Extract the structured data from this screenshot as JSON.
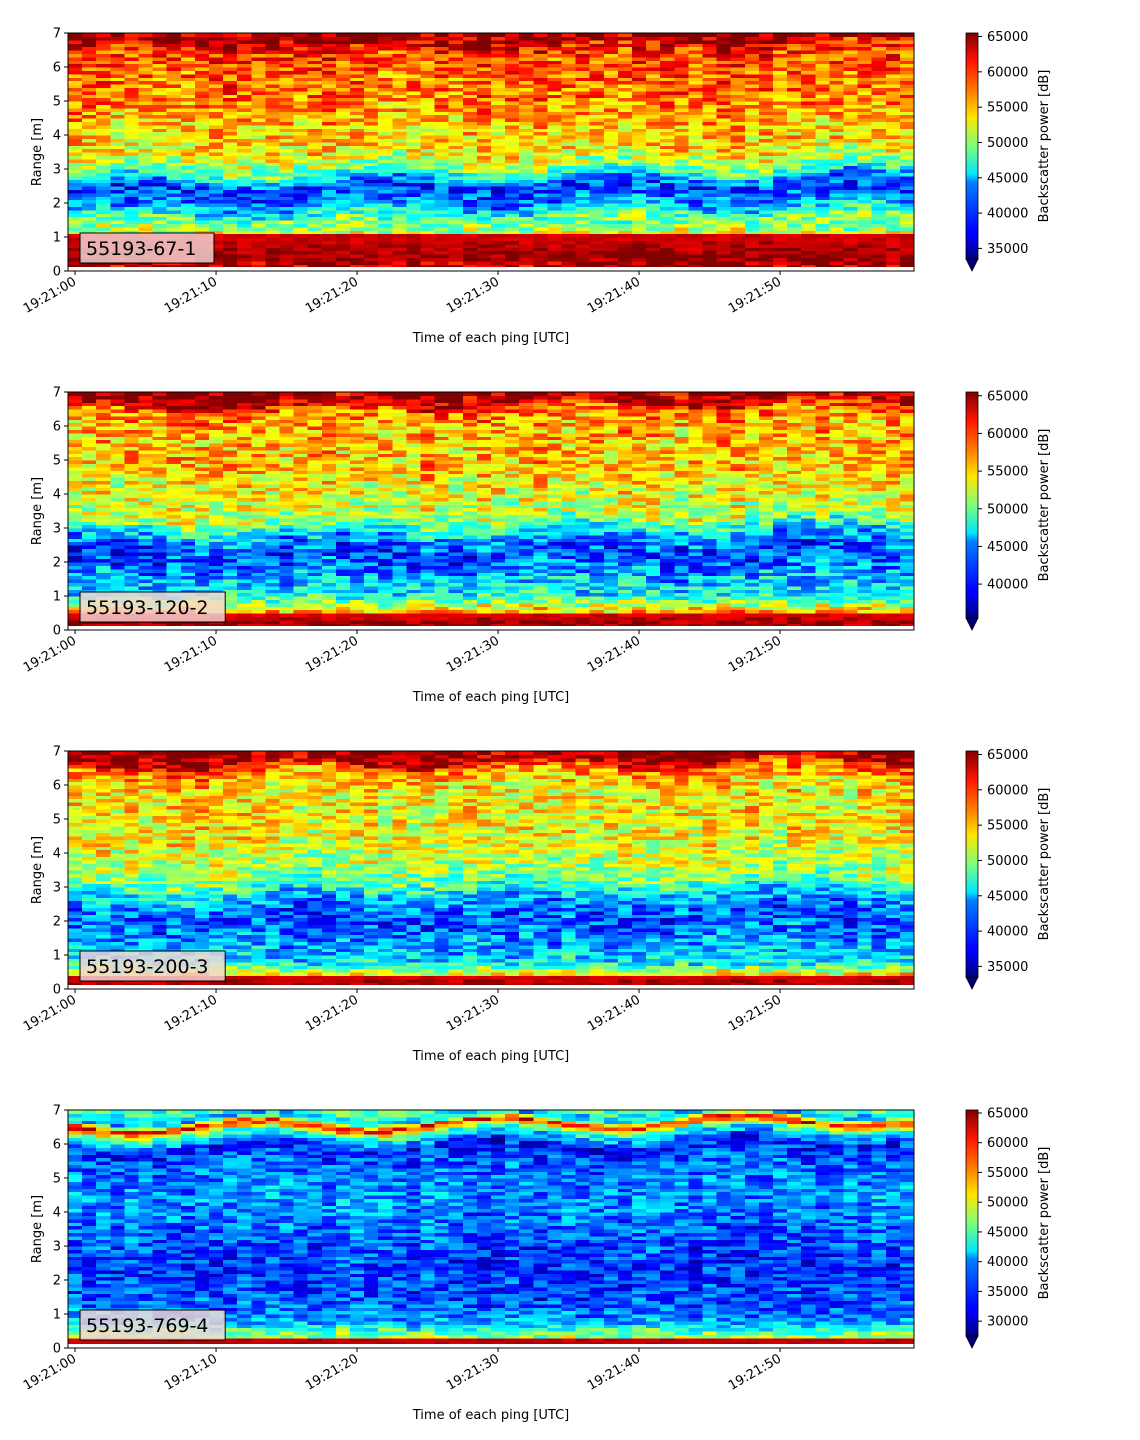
{
  "chart_data": [
    {
      "type": "heatmap",
      "label": "55193-67-1",
      "xlabel": "Time of each ping [UTC]",
      "ylabel": "Range [m]",
      "x_ticks": [
        "19:21:00",
        "19:21:10",
        "19:21:20",
        "19:21:30",
        "19:21:40",
        "19:21:50"
      ],
      "xlim": [
        "19:20:59.5",
        "19:21:59.5"
      ],
      "y_ticks": [
        0,
        1,
        2,
        3,
        4,
        5,
        6,
        7
      ],
      "ylim": [
        0,
        7
      ],
      "colorbar_label": "Backscatter power [dB]",
      "colorbar_ticks": [
        35000,
        40000,
        45000,
        50000,
        55000,
        60000,
        65000
      ],
      "clim": [
        33500,
        65500
      ],
      "colormap": "jet",
      "profile": [
        [
          0,
          63500
        ],
        [
          0.3,
          65000
        ],
        [
          0.8,
          62000
        ],
        [
          1.15,
          52000
        ],
        [
          1.6,
          48000
        ],
        [
          2.0,
          42000
        ],
        [
          2.5,
          39000
        ],
        [
          3.0,
          49000
        ],
        [
          3.5,
          54000
        ],
        [
          4.2,
          55000
        ],
        [
          5.0,
          57500
        ],
        [
          6.0,
          58500
        ],
        [
          6.55,
          60000
        ],
        [
          6.75,
          64500
        ],
        [
          7.0,
          64000
        ]
      ],
      "bottom_edge": [
        0.25,
        1.1
      ],
      "layer": [
        2.3,
        2.95
      ]
    },
    {
      "type": "heatmap",
      "label": "55193-120-2",
      "xlabel": "Time of each ping [UTC]",
      "ylabel": "Range [m]",
      "x_ticks": [
        "19:21:00",
        "19:21:10",
        "19:21:20",
        "19:21:30",
        "19:21:40",
        "19:21:50"
      ],
      "xlim": [
        "19:20:59.5",
        "19:21:59.5"
      ],
      "y_ticks": [
        0,
        1,
        2,
        3,
        4,
        5,
        6,
        7
      ],
      "ylim": [
        0,
        7
      ],
      "colorbar_label": "Backscatter power [dB]",
      "colorbar_ticks": [
        40000,
        45000,
        50000,
        55000,
        60000,
        65000
      ],
      "clim": [
        35500,
        65500
      ],
      "colormap": "jet",
      "profile": [
        [
          0,
          64500
        ],
        [
          0.25,
          65000
        ],
        [
          0.55,
          56000
        ],
        [
          1.0,
          47000
        ],
        [
          1.6,
          44000
        ],
        [
          2.2,
          41000
        ],
        [
          2.8,
          44000
        ],
        [
          3.3,
          52000
        ],
        [
          4.2,
          54000
        ],
        [
          5.0,
          56000
        ],
        [
          6.0,
          56000
        ],
        [
          6.5,
          59000
        ],
        [
          6.75,
          64500
        ],
        [
          7.0,
          64500
        ]
      ],
      "bottom_edge": [
        0.1,
        0.5
      ],
      "layer": [
        2.6,
        3.7
      ]
    },
    {
      "type": "heatmap",
      "label": "55193-200-3",
      "xlabel": "Time of each ping [UTC]",
      "ylabel": "Range [m]",
      "x_ticks": [
        "19:21:00",
        "19:21:10",
        "19:21:20",
        "19:21:30",
        "19:21:40",
        "19:21:50"
      ],
      "xlim": [
        "19:20:59.5",
        "19:21:59.5"
      ],
      "y_ticks": [
        0,
        1,
        2,
        3,
        4,
        5,
        6,
        7
      ],
      "ylim": [
        0,
        7
      ],
      "colorbar_label": "Backscatter power [dB]",
      "colorbar_ticks": [
        35000,
        40000,
        45000,
        50000,
        55000,
        60000,
        65000
      ],
      "clim": [
        33500,
        65500
      ],
      "colormap": "jet",
      "profile": [
        [
          0,
          64500
        ],
        [
          0.2,
          64500
        ],
        [
          0.4,
          55000
        ],
        [
          0.8,
          45000
        ],
        [
          1.5,
          42000
        ],
        [
          2.2,
          40000
        ],
        [
          2.8,
          44000
        ],
        [
          3.3,
          50000
        ],
        [
          4.2,
          53000
        ],
        [
          5.0,
          54000
        ],
        [
          6.0,
          54000
        ],
        [
          6.5,
          58000
        ],
        [
          6.75,
          64500
        ],
        [
          7.0,
          64500
        ]
      ],
      "bottom_edge": [
        0.1,
        0.4
      ],
      "layer": [
        2.3,
        2.9
      ]
    },
    {
      "type": "heatmap",
      "label": "55193-769-4",
      "xlabel": "Time of each ping [UTC]",
      "ylabel": "Range [m]",
      "x_ticks": [
        "19:21:00",
        "19:21:10",
        "19:21:20",
        "19:21:30",
        "19:21:40",
        "19:21:50"
      ],
      "xlim": [
        "19:20:59.5",
        "19:21:59.5"
      ],
      "y_ticks": [
        0,
        1,
        2,
        3,
        4,
        5,
        6,
        7
      ],
      "ylim": [
        0,
        7
      ],
      "colorbar_label": "Backscatter power [dB]",
      "colorbar_ticks": [
        30000,
        35000,
        40000,
        45000,
        50000,
        55000,
        60000,
        65000
      ],
      "clim": [
        27500,
        65500
      ],
      "colormap": "jet",
      "profile": [
        [
          0,
          36000
        ],
        [
          0.2,
          63000
        ],
        [
          0.35,
          48000
        ],
        [
          0.8,
          38000
        ],
        [
          1.5,
          35000
        ],
        [
          2.5,
          34000
        ],
        [
          3.5,
          36000
        ],
        [
          4.5,
          38000
        ],
        [
          5.5,
          36000
        ],
        [
          6.0,
          33000
        ],
        [
          6.4,
          45000
        ],
        [
          6.6,
          62000
        ],
        [
          6.8,
          38000
        ],
        [
          7.0,
          44000
        ]
      ],
      "bottom_edge": [
        0.1,
        0.3
      ],
      "layer": [
        5.6,
        6.3
      ]
    }
  ]
}
